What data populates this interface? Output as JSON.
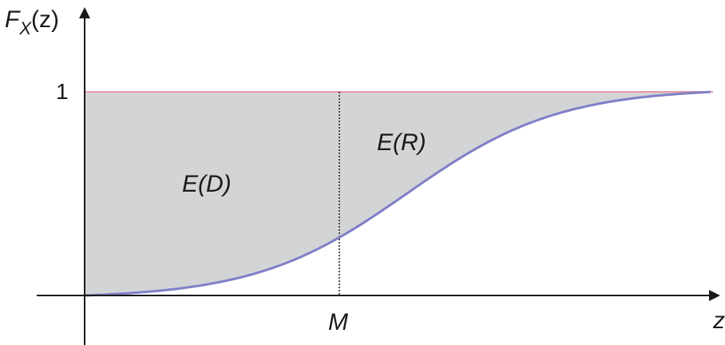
{
  "diagram": {
    "y_axis_label_main": "F",
    "y_axis_label_sub": "X",
    "y_axis_label_arg": "(z)",
    "x_axis_label": "z",
    "y_tick_one": "1",
    "x_marker_label": "M",
    "region_left_label": "E(D)",
    "region_right_label": "E(R)",
    "colors": {
      "fill": "#d3d4d6",
      "curve": "#7f7fc8",
      "upper_line": "#e39aa8",
      "axes": "#1a1a1a"
    }
  }
}
